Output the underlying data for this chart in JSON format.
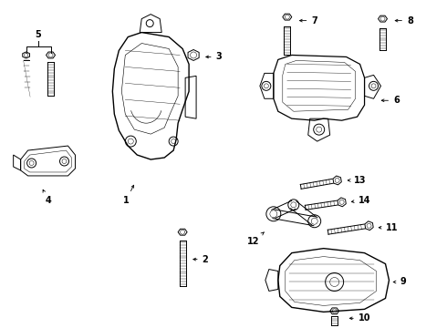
{
  "background_color": "#ffffff",
  "fig_width": 4.9,
  "fig_height": 3.6,
  "dpi": 100,
  "lw": 0.7,
  "lc": "black"
}
